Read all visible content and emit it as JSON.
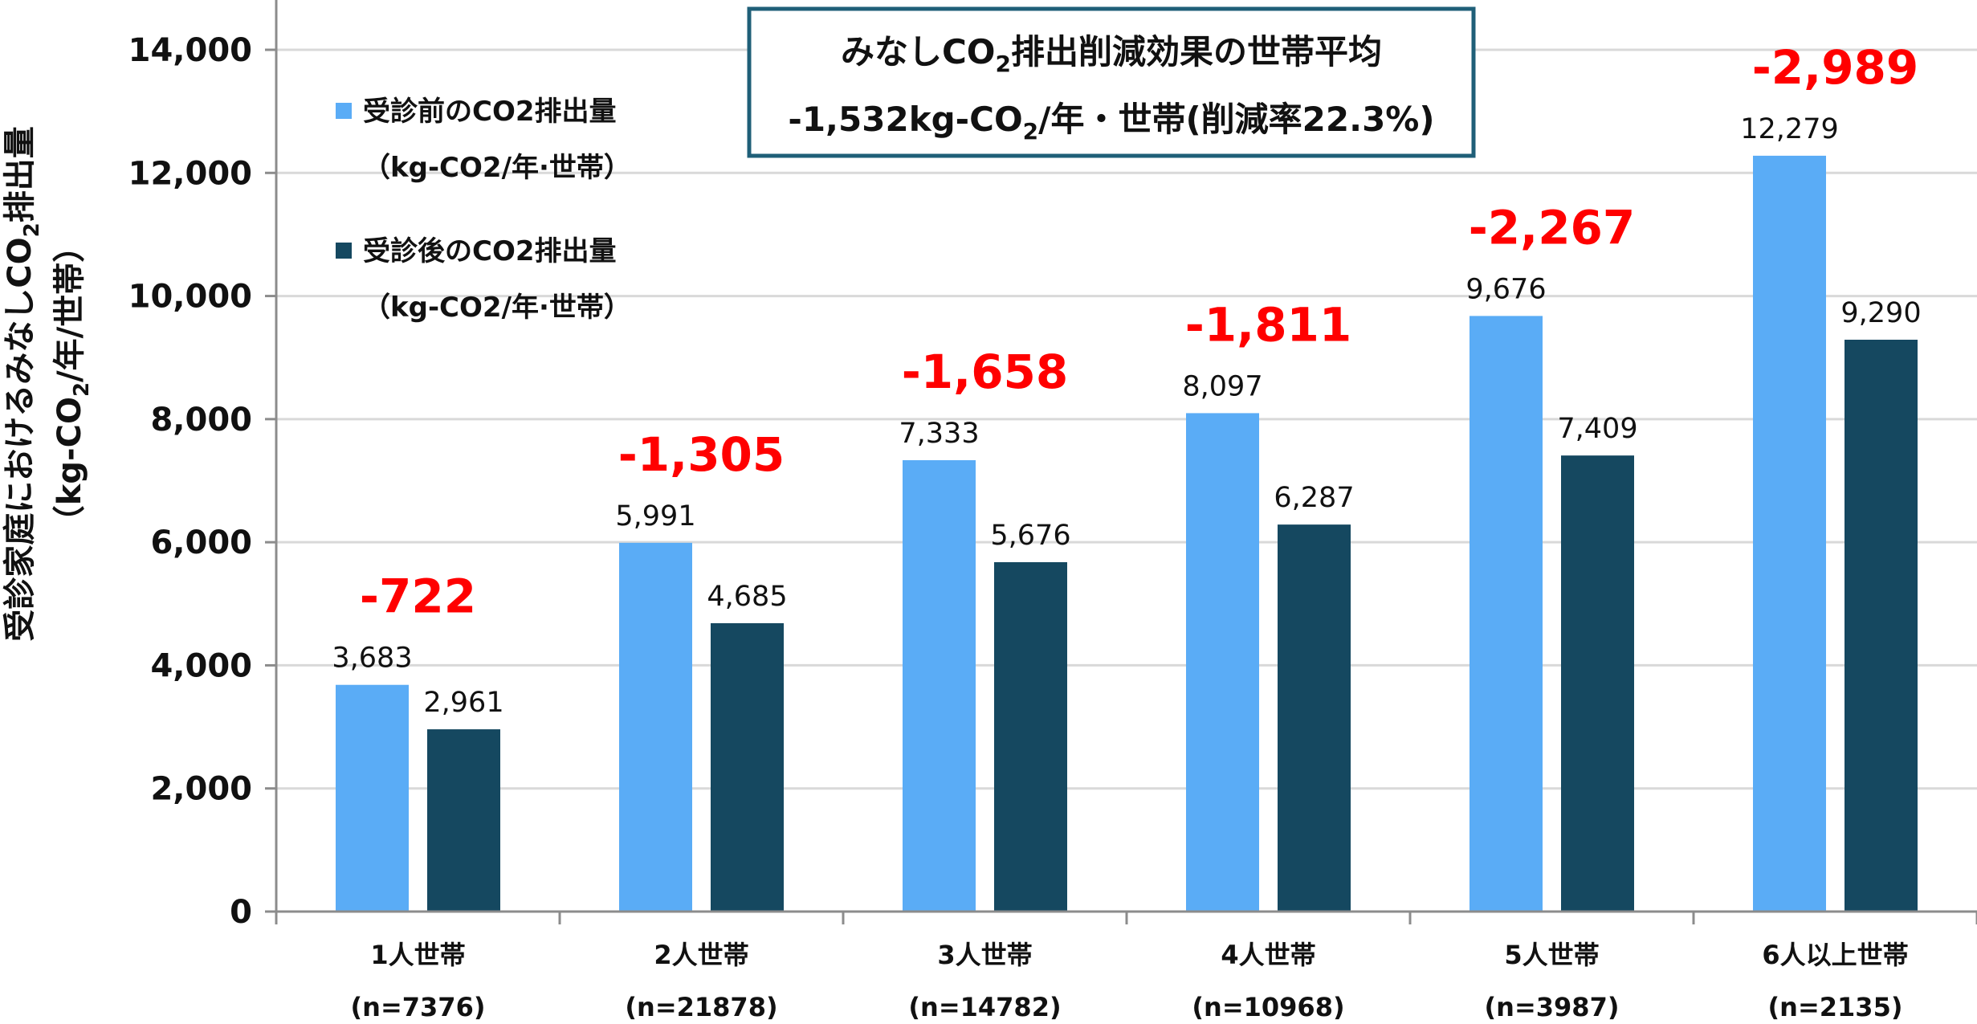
{
  "chart_data": {
    "type": "bar",
    "ylabel_line1_pre": "受診家庭におけるみなしCO",
    "ylabel_line1_sub": "2",
    "ylabel_line1_post": "排出量",
    "ylabel_line2_pre": "（kg-CO",
    "ylabel_line2_sub": "2",
    "ylabel_line2_post": "/年/世帯）",
    "ylim": [
      0,
      14000
    ],
    "yticks": [
      "0",
      "2,000",
      "4,000",
      "6,000",
      "8,000",
      "10,000",
      "12,000",
      "14,000"
    ],
    "grid": true,
    "legend_position": "top-left",
    "categories": [
      {
        "label": "1人世帯",
        "n": "(n=7376)"
      },
      {
        "label": "2人世帯",
        "n": "(n=21878)"
      },
      {
        "label": "3人世帯",
        "n": "(n=14782)"
      },
      {
        "label": "4人世帯",
        "n": "(n=10968)"
      },
      {
        "label": "5人世帯",
        "n": "(n=3987)"
      },
      {
        "label": "6人以上世帯",
        "n": "(n=2135)"
      }
    ],
    "series": [
      {
        "name_line1": "受診前のCO2排出量",
        "name_line2": "（kg-CO2/年·世帯）",
        "color": "#5aacf6",
        "values": [
          3683,
          5991,
          7333,
          8097,
          9676,
          12279
        ],
        "value_labels": [
          "3,683",
          "5,991",
          "7,333",
          "8,097",
          "9,676",
          "12,279"
        ]
      },
      {
        "name_line1": "受診後のCO2排出量",
        "name_line2": "（kg-CO2/年·世帯）",
        "color": "#154860",
        "values": [
          2961,
          4685,
          5676,
          6287,
          7409,
          9290
        ],
        "value_labels": [
          "2,961",
          "4,685",
          "5,676",
          "6,287",
          "7,409",
          "9,290"
        ]
      }
    ],
    "differences": [
      "-722",
      "-1,305",
      "-1,658",
      "-1,811",
      "-2,267",
      "-2,989"
    ],
    "difference_color": "#ff0000",
    "summary": {
      "line1_pre": "みなしCO",
      "line1_sub": "2",
      "line1_post": "排出削減効果の世帯平均",
      "line2_pre": "-1,532kg-CO",
      "line2_sub": "2",
      "line2_post": "/年・世帯(削減率22.3%)",
      "border_color": "#1f5f78"
    }
  }
}
